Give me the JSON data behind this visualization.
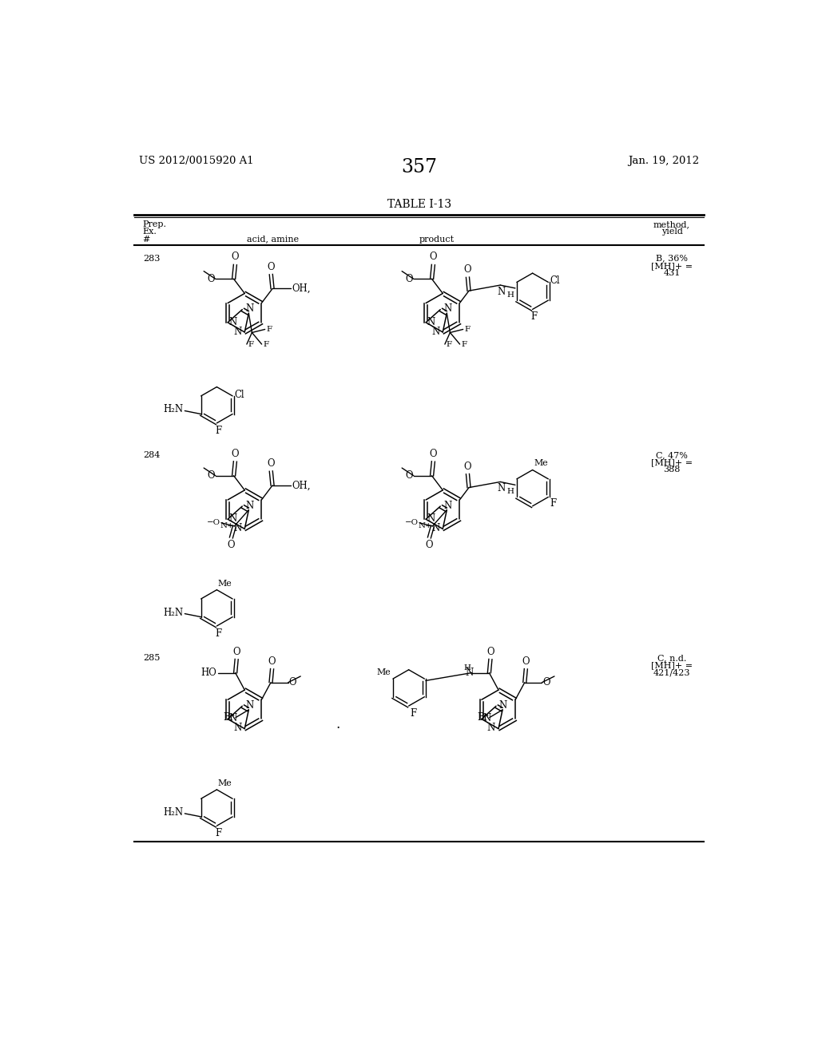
{
  "page_number": "357",
  "patent_number": "US 2012/0015920 A1",
  "date": "Jan. 19, 2012",
  "table_title": "TABLE I-13",
  "bg_color": "#ffffff",
  "text_color": "#000000",
  "rows": [
    {
      "id": "283",
      "method": "B, 36%",
      "mh": "[MH]+ =",
      "mass": "431"
    },
    {
      "id": "284",
      "method": "C, 47%",
      "mh": "[MH]+ =",
      "mass": "388"
    },
    {
      "id": "285",
      "method": "C, n.d.",
      "mh": "[MH]+ =",
      "mass": "421/423"
    }
  ]
}
